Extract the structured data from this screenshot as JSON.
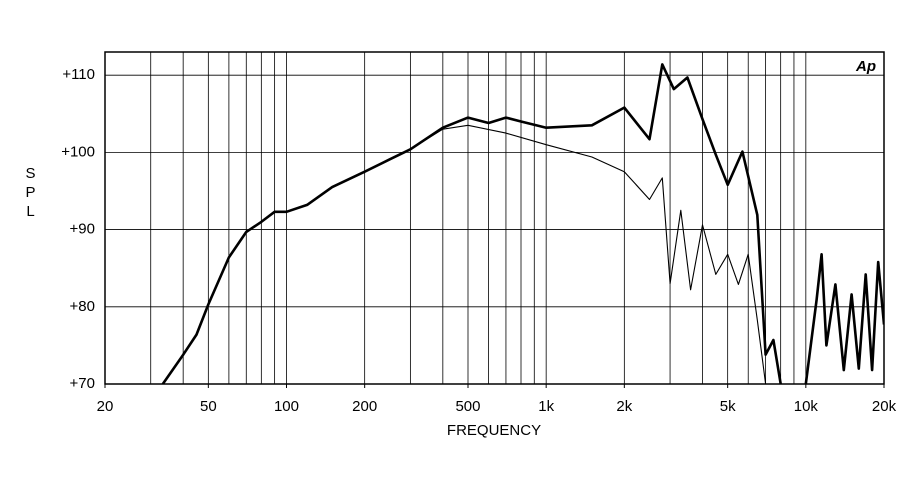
{
  "chart_data": {
    "type": "line",
    "xlabel": "FREQUENCY",
    "ylabel": "SPL",
    "logo": "Ap",
    "xscale": "log",
    "grid": true,
    "xlim": [
      20,
      20000
    ],
    "ylim": [
      70,
      113
    ],
    "xticks": [
      20,
      50,
      100,
      200,
      500,
      {
        "value": 1000,
        "label": "1k"
      },
      {
        "value": 2000,
        "label": "2k"
      },
      {
        "value": 5000,
        "label": "5k"
      },
      {
        "value": 10000,
        "label": "10k"
      },
      {
        "value": 20000,
        "label": "20k"
      }
    ],
    "xgrid": [
      30,
      40,
      50,
      60,
      70,
      80,
      90,
      100,
      200,
      300,
      400,
      500,
      600,
      700,
      800,
      900,
      1000,
      2000,
      3000,
      4000,
      5000,
      6000,
      7000,
      8000,
      9000,
      10000
    ],
    "yticks": [
      {
        "value": 70,
        "label": "+70"
      },
      {
        "value": 80,
        "label": "+80"
      },
      {
        "value": 90,
        "label": "+90"
      },
      {
        "value": 100,
        "label": "+100"
      },
      {
        "value": 110,
        "label": "+110"
      }
    ],
    "series": [
      {
        "color": "#000000",
        "width": 2.6,
        "x": [
          33.4,
          40,
          45,
          50,
          60,
          70,
          80,
          90,
          100,
          120,
          150,
          200,
          250,
          300,
          400,
          500,
          600,
          700,
          800,
          1000,
          1500,
          2000,
          2500,
          2800,
          3100,
          3500,
          4000,
          4500,
          5000,
          5700,
          6500,
          7000,
          7500,
          8000,
          9000,
          10000,
          11000,
          11500,
          12000,
          13000,
          14000,
          15000,
          16000,
          17000,
          18000,
          19000,
          20000
        ],
        "values": [
          70,
          73.8,
          76.4,
          80.3,
          86.4,
          89.7,
          91,
          92.3,
          92.3,
          93.2,
          95.5,
          97.5,
          99.1,
          100.4,
          103.2,
          104.5,
          103.8,
          104.5,
          104,
          103.2,
          103.5,
          105.8,
          101.7,
          111.4,
          108.2,
          109.7,
          104.3,
          99.7,
          95.8,
          100.1,
          91.9,
          73.8,
          75.7,
          70,
          null,
          70,
          80.9,
          86.8,
          75,
          82.9,
          71.8,
          81.6,
          72,
          84.2,
          71.8,
          85.8,
          77.7
        ]
      },
      {
        "color": "#000000",
        "width": 1.1,
        "x": [
          33.4,
          40,
          45,
          50,
          60,
          70,
          80,
          90,
          100,
          120,
          150,
          200,
          250,
          300,
          400,
          500,
          700,
          1000,
          1500,
          2000,
          2500,
          2800,
          3000,
          3300,
          3600,
          4000,
          4500,
          5000,
          5500,
          6000,
          6500,
          7000
        ],
        "values": [
          70,
          73.8,
          76.4,
          80.3,
          86.4,
          89.7,
          91,
          92.3,
          92.3,
          93.2,
          95.5,
          97.5,
          99.1,
          100.4,
          103,
          103.5,
          102.5,
          101,
          99.4,
          97.5,
          93.9,
          96.7,
          83,
          92.5,
          82.2,
          90.6,
          84.2,
          86.8,
          82.9,
          86.8,
          78.3,
          70
        ]
      }
    ]
  }
}
